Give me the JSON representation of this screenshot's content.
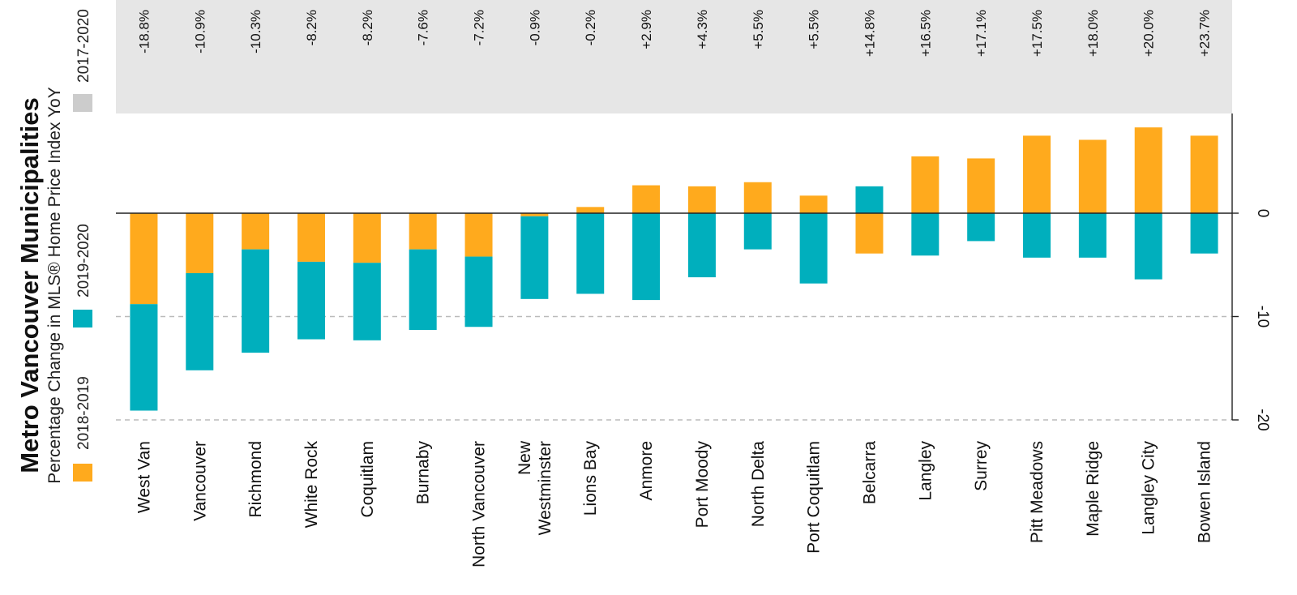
{
  "chart_data": {
    "type": "bar",
    "stacked": true,
    "title": "Metro Vancouver Municipalities",
    "subtitle": "Percentage Change in MLS® Home Price Index YoY",
    "categories": [
      "West Van",
      "Vancouver",
      "Richmond",
      "White Rock",
      "Coquitlam",
      "Burnaby",
      "North Vancouver",
      "New Westminster",
      "Lions Bay",
      "Anmore",
      "Port Moody",
      "North Delta",
      "Port Coquitlam",
      "Belcarra",
      "Langley",
      "Surrey",
      "Pitt Meadows",
      "Maple Ridge",
      "Langley City",
      "Bowen Island"
    ],
    "category_lines": [
      [
        "West Van"
      ],
      [
        "Vancouver"
      ],
      [
        "Richmond"
      ],
      [
        "White Rock"
      ],
      [
        "Coquitlam"
      ],
      [
        "Burnaby"
      ],
      [
        "North Vancouver"
      ],
      [
        "New",
        "Westminster"
      ],
      [
        "Lions Bay"
      ],
      [
        "Anmore"
      ],
      [
        "Port Moody"
      ],
      [
        "North Delta"
      ],
      [
        "Port Coquitlam"
      ],
      [
        "Belcarra"
      ],
      [
        "Langley"
      ],
      [
        "Surrey"
      ],
      [
        "Pitt Meadows"
      ],
      [
        "Maple Ridge"
      ],
      [
        "Langley City"
      ],
      [
        "Bowen Island"
      ]
    ],
    "series": [
      {
        "name": "2018-2019",
        "color": "#FFAA1D",
        "values": [
          -8.8,
          -5.8,
          -3.5,
          -4.7,
          -4.8,
          -3.5,
          -4.2,
          -0.3,
          0.6,
          2.7,
          2.6,
          3.0,
          1.7,
          -3.9,
          5.5,
          5.3,
          7.5,
          7.1,
          8.3,
          7.5
        ]
      },
      {
        "name": "2019-2020",
        "color": "#00AFBD",
        "values": [
          -10.3,
          -9.4,
          -10.0,
          -7.5,
          -7.5,
          -7.8,
          -6.8,
          -8.0,
          -7.8,
          -8.4,
          -6.2,
          -3.5,
          -6.8,
          2.6,
          -4.1,
          -2.7,
          -4.3,
          -4.3,
          -6.4,
          -3.9
        ]
      }
    ],
    "change_2017_2020": {
      "name": "2017-2020",
      "color": "#CCCCCC",
      "labels": [
        "-18.8%",
        "-10.9%",
        "-10.3%",
        "-8.2%",
        "-8.2%",
        "-7.6%",
        "-7.2%",
        "-0.9%",
        "-0.2%",
        "+2.9%",
        "+4.3%",
        "+5.5%",
        "+5.5%",
        "+14.8%",
        "+16.5%",
        "+17.1%",
        "+17.5%",
        "+18.0%",
        "+20.0%",
        "+23.7%"
      ]
    },
    "value_axis": {
      "range": [
        -20,
        9.5
      ],
      "ticks": [
        0,
        -10,
        -20
      ],
      "tick_labels": [
        "0",
        "-10",
        "-20"
      ],
      "dashed_gridlines": [
        -10,
        -20
      ]
    },
    "legend": {
      "position": "left, rotated"
    }
  }
}
